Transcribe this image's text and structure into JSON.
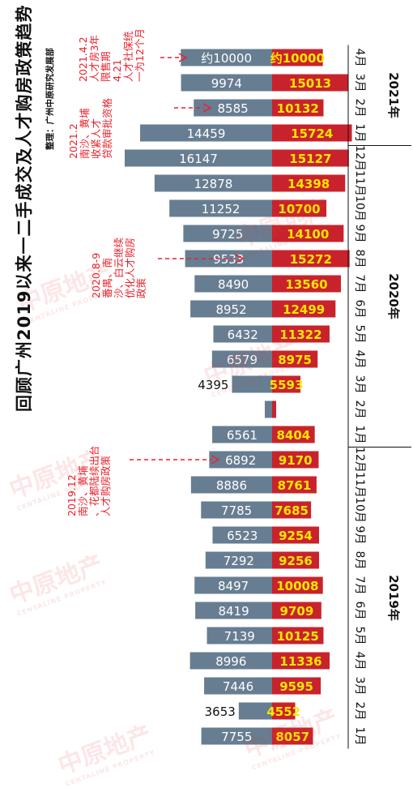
{
  "title": "回顾广州2019以来一二手成交及人才购房政策趋势",
  "subtitle": "整理：广州中原研究发展部",
  "watermark": {
    "text": "中原地产",
    "sub": "CENTALINE PROPERTY"
  },
  "colors": {
    "new": "#c8232c",
    "second": "#677d91",
    "new_label": "#ffe600",
    "second_label": "#ffffff",
    "axis": "#111111",
    "annotation": "#e8222d"
  },
  "chart_data": {
    "type": "bar",
    "orientation": "horizontal-diverging",
    "rows": [
      {
        "month": "4月",
        "year": "2021年",
        "new": 10000,
        "second": 10000,
        "new_label": "约10000",
        "second_label": "约10000"
      },
      {
        "month": "3月",
        "year": "2021年",
        "new": 15013,
        "second": 9974,
        "new_label": "15013",
        "second_label": "9974"
      },
      {
        "month": "2月",
        "year": "2021年",
        "new": 10132,
        "second": 8585,
        "new_label": "10132",
        "second_label": "8585"
      },
      {
        "month": "1月",
        "year": "2021年",
        "new": 15724,
        "second": 14459,
        "new_label": "15724",
        "second_label": "14459"
      },
      {
        "month": "12月",
        "year": "2020年",
        "new": 15127,
        "second": 16147,
        "new_label": "15127",
        "second_label": "16147"
      },
      {
        "month": "11月",
        "year": "2020年",
        "new": 14398,
        "second": 12878,
        "new_label": "14398",
        "second_label": "12878"
      },
      {
        "month": "10月",
        "year": "2020年",
        "new": 10700,
        "second": 11252,
        "new_label": "10700",
        "second_label": "11252"
      },
      {
        "month": "9月",
        "year": "2020年",
        "new": 14100,
        "second": 9725,
        "new_label": "14100",
        "second_label": "9725"
      },
      {
        "month": "8月",
        "year": "2020年",
        "new": 15272,
        "second": 9533,
        "new_label": "15272",
        "second_label": "9533"
      },
      {
        "month": "7月",
        "year": "2020年",
        "new": 13560,
        "second": 8490,
        "new_label": "13560",
        "second_label": "8490"
      },
      {
        "month": "6月",
        "year": "2020年",
        "new": 12499,
        "second": 8952,
        "new_label": "12499",
        "second_label": "8952"
      },
      {
        "month": "5月",
        "year": "2020年",
        "new": 11322,
        "second": 6432,
        "new_label": "11322",
        "second_label": "6432"
      },
      {
        "month": "4月",
        "year": "2020年",
        "new": 8975,
        "second": 6579,
        "new_label": "8975",
        "second_label": "6579"
      },
      {
        "month": "3月",
        "year": "2020年",
        "new": 5593,
        "second": 4395,
        "new_label": "5593",
        "second_label": "4395"
      },
      {
        "month": "2月",
        "year": "2020年",
        "new": 800,
        "second": 800,
        "new_label": "",
        "second_label": ""
      },
      {
        "month": "1月",
        "year": "2020年",
        "new": 8404,
        "second": 6561,
        "new_label": "8404",
        "second_label": "6561"
      },
      {
        "month": "12月",
        "year": "2019年",
        "new": 9170,
        "second": 6892,
        "new_label": "9170",
        "second_label": "6892"
      },
      {
        "month": "11月",
        "year": "2019年",
        "new": 8761,
        "second": 8886,
        "new_label": "8761",
        "second_label": "8886"
      },
      {
        "month": "10月",
        "year": "2019年",
        "new": 7685,
        "second": 7785,
        "new_label": "7685",
        "second_label": "7785"
      },
      {
        "month": "9月",
        "year": "2019年",
        "new": 9254,
        "second": 6523,
        "new_label": "9254",
        "second_label": "6523"
      },
      {
        "month": "8月",
        "year": "2019年",
        "new": 9256,
        "second": 7292,
        "new_label": "9256",
        "second_label": "7292"
      },
      {
        "month": "7月",
        "year": "2019年",
        "new": 10008,
        "second": 8497,
        "new_label": "10008",
        "second_label": "8497"
      },
      {
        "month": "6月",
        "year": "2019年",
        "new": 9709,
        "second": 8419,
        "new_label": "9709",
        "second_label": "8419"
      },
      {
        "month": "5月",
        "year": "2019年",
        "new": 10125,
        "second": 7139,
        "new_label": "10125",
        "second_label": "7139"
      },
      {
        "month": "4月",
        "year": "2019年",
        "new": 11336,
        "second": 8996,
        "new_label": "11336",
        "second_label": "8996"
      },
      {
        "month": "3月",
        "year": "2019年",
        "new": 9595,
        "second": 7446,
        "new_label": "9595",
        "second_label": "7446"
      },
      {
        "month": "2月",
        "year": "2019年",
        "new": 4552,
        "second": 3653,
        "new_label": "4552",
        "second_label": "3653"
      },
      {
        "month": "1月",
        "year": "2019年",
        "new": 8057,
        "second": 7755,
        "new_label": "8057",
        "second_label": "7755"
      }
    ],
    "years": [
      "2021年",
      "2020年",
      "2019年"
    ]
  },
  "annotations": [
    {
      "lines": [
        "2021.4.2",
        "人才房3年",
        "限售期",
        "4.21",
        "人才社保统",
        "一为12个月"
      ],
      "target_row": 0
    },
    {
      "lines": [
        "2021.2",
        "南沙、黄埔",
        "收紧人才",
        "贷款审批资格"
      ],
      "target_row": 2
    },
    {
      "lines": [
        "2020.8-9",
        "番禺、南",
        "沙、白云继续",
        "优化人才购房",
        "政策"
      ],
      "target_row": 8
    },
    {
      "lines": [
        "2019.12",
        "南沙、黄埔",
        "、花都陆续出台",
        "人才购房政策"
      ],
      "target_row": 16
    }
  ]
}
